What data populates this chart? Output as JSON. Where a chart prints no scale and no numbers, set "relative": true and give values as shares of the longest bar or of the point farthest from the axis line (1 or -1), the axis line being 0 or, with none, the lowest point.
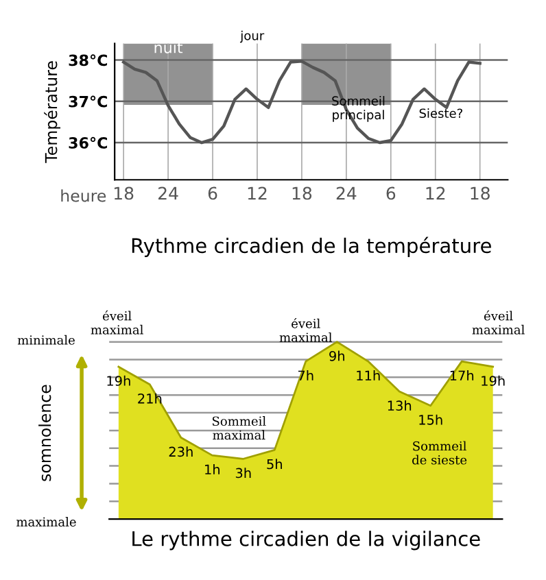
{
  "chart_data": [
    {
      "type": "line",
      "title": "Rythme circadien de la température",
      "xlabel": "heure",
      "ylabel": "Température",
      "categories": [
        "18",
        null,
        null,
        null,
        "24",
        null,
        null,
        null,
        "6",
        null,
        null,
        null,
        "12",
        null,
        null,
        null,
        "18",
        null,
        null,
        null,
        "24",
        null,
        null,
        null,
        "6",
        null,
        null,
        null,
        "12",
        null,
        null,
        null,
        "18"
      ],
      "series": [
        {
          "color": "#555555",
          "values": [
            37.95,
            37.78,
            37.7,
            37.5,
            36.9,
            36.45,
            36.12,
            36.0,
            36.08,
            36.4,
            37.05,
            37.3,
            37.05,
            36.85,
            37.5,
            37.95,
            37.97,
            37.82,
            37.7,
            37.5,
            36.8,
            36.35,
            36.1,
            36.0,
            36.05,
            36.45,
            37.05,
            37.3,
            37.05,
            36.85,
            37.5,
            37.95,
            37.92
          ]
        }
      ],
      "ylim": [
        35.1,
        38.4
      ],
      "yticks": [
        {
          "value": 36,
          "label": "36°C"
        },
        {
          "value": 37,
          "label": "37°C"
        },
        {
          "value": 38,
          "label": "38°C"
        }
      ],
      "bands": [
        {
          "axis": "x",
          "from": "18",
          "to": "6",
          "label": "nuit",
          "color": "#777777"
        }
      ],
      "annotations": [
        "jour",
        "Sommeil\nprincipal",
        "Sieste?"
      ],
      "grid": true,
      "marker": "none",
      "line_style": "solid"
    },
    {
      "type": "area",
      "title": "Le rythme circadien de la vigilance",
      "ylabel": "somnolence",
      "relative": true,
      "categories": [
        "19h",
        "21h",
        "23h",
        "1h",
        "3h",
        "5h",
        "7h",
        "9h",
        "11h",
        "13h",
        "15h",
        "17h",
        "19h"
      ],
      "series": [
        {
          "color": "#e0e020",
          "values": [
            0.86,
            0.76,
            0.46,
            0.36,
            0.34,
            0.39,
            0.89,
            1.0,
            0.89,
            0.72,
            0.64,
            0.89,
            0.86
          ]
        }
      ],
      "annotations": [
        "éveil\nmaximal",
        "éveil\nmaximal",
        "éveil\nmaximal",
        "Sommeil\nmaximal",
        "Sommeil\nde sieste",
        "minimale",
        "maximale"
      ],
      "grid": "y"
    }
  ]
}
